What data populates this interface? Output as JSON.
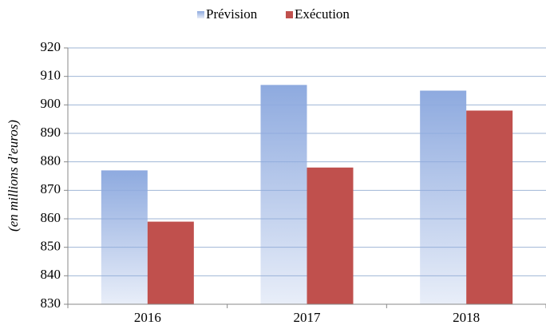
{
  "chart_data": {
    "type": "bar",
    "categories": [
      "2016",
      "2017",
      "2018"
    ],
    "series": [
      {
        "name": "Prévision",
        "color": "#8eaadf",
        "values": [
          877,
          907,
          905
        ]
      },
      {
        "name": "Exécution",
        "color": "#c0504d",
        "values": [
          859,
          878,
          898
        ]
      }
    ],
    "y_label": "(en millions d'euros)",
    "ylim": [
      830,
      920
    ],
    "yticks": [
      830,
      840,
      850,
      860,
      870,
      880,
      890,
      900,
      910,
      920
    ],
    "grid": true,
    "legend": "top"
  }
}
